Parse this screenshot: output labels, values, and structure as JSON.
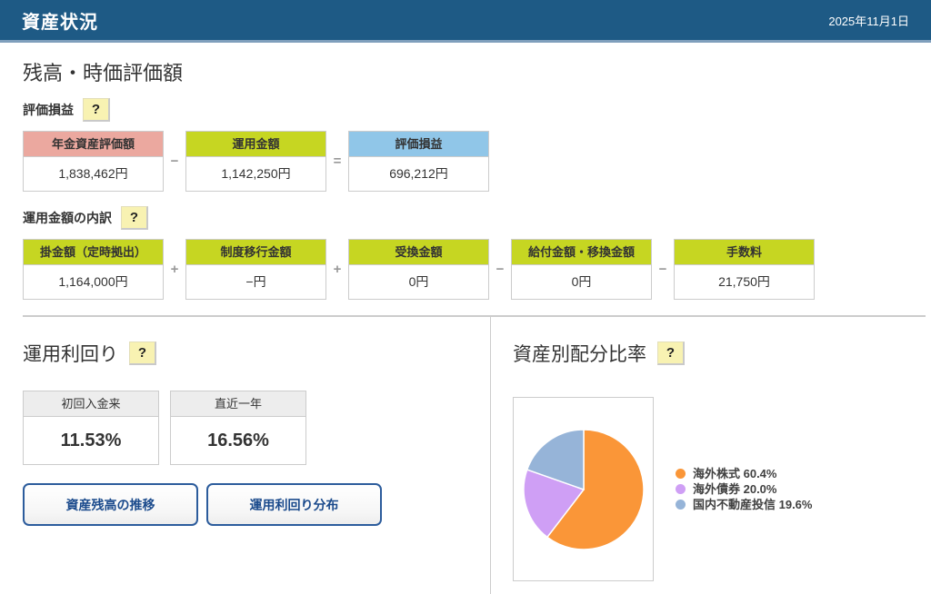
{
  "header": {
    "title": "資産状況",
    "date": "2025年11月1日"
  },
  "balance_section": {
    "title": "残高・時価評価額",
    "pl_label": "評価損益",
    "help_icon": "?",
    "pl_boxes": [
      {
        "label": "年金資産評価額",
        "value": "1,838,462円",
        "color": "#eba89f"
      },
      {
        "label": "運用金額",
        "value": "1,142,250円",
        "color": "#c6d622"
      },
      {
        "label": "評価損益",
        "value": "696,212円",
        "color": "#90c6e8"
      }
    ],
    "pl_operators": [
      "−",
      "="
    ],
    "breakdown_label": "運用金額の内訳",
    "breakdown_header_color": "#c6d622",
    "breakdown_boxes": [
      {
        "label": "掛金額（定時拠出）",
        "value": "1,164,000円"
      },
      {
        "label": "制度移行金額",
        "value": "−円"
      },
      {
        "label": "受換金額",
        "value": "0円"
      },
      {
        "label": "給付金額・移換金額",
        "value": "0円"
      },
      {
        "label": "手数料",
        "value": "21,750円"
      }
    ],
    "breakdown_operators": [
      "+",
      "+",
      "−",
      "−"
    ]
  },
  "yield_section": {
    "title": "運用利回り",
    "help_icon": "?",
    "boxes": [
      {
        "label": "初回入金来",
        "value": "11.53%"
      },
      {
        "label": "直近一年",
        "value": "16.56%"
      }
    ],
    "buttons": [
      {
        "label": "資産残高の推移"
      },
      {
        "label": "運用利回り分布"
      }
    ]
  },
  "allocation_section": {
    "title": "資産別配分比率",
    "help_icon": "?"
  },
  "chart_data": {
    "type": "pie",
    "title": "資産別配分比率",
    "labels": [
      "海外株式",
      "海外債券",
      "国内不動産投信"
    ],
    "values": [
      60.4,
      20.0,
      19.6
    ],
    "colors": [
      "#fa9638",
      "#cf9ff5",
      "#96b4d8"
    ],
    "legend_entries": [
      "海外株式 60.4%",
      "海外債券 20.0%",
      "国内不動産投信 19.6%"
    ],
    "legend_position": "right",
    "start_angle": "top",
    "direction": "clockwise"
  }
}
